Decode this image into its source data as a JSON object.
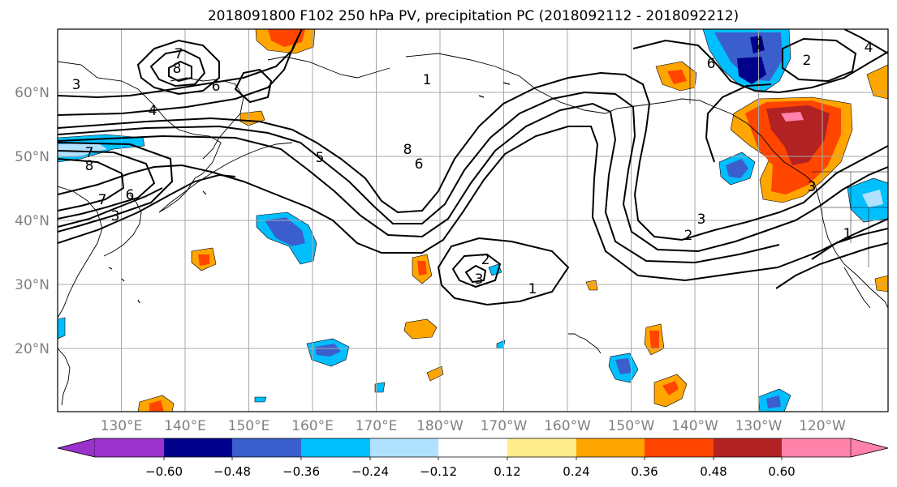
{
  "title": "2018091800 F102 250 hPa PV, precipitation PC (2018092112 - 2018092212)",
  "map": {
    "lon_labels": [
      "130°E",
      "140°E",
      "150°E",
      "160°E",
      "170°E",
      "180°W",
      "170°W",
      "160°W",
      "150°W",
      "140°W",
      "130°W",
      "120°W"
    ],
    "lat_labels": [
      "60°N",
      "50°N",
      "40°N",
      "30°N",
      "20°N"
    ],
    "label_color": "#808080",
    "grid_color": "#a8a8a8",
    "pv_contour_labels": [
      "7",
      "8",
      "6",
      "3",
      "4",
      "7",
      "8",
      "6",
      "5",
      "7",
      "8",
      "6",
      "3",
      "6",
      "4",
      "2",
      "3",
      "2",
      "3",
      "2",
      "1",
      "1",
      "2",
      "3",
      "1"
    ]
  },
  "colorbar": {
    "colors": [
      "#9a32cd",
      "#00008b",
      "#3a5fcd",
      "#00bfff",
      "#b0e2ff",
      "#ffffff",
      "#ffec8b",
      "#ffa500",
      "#ff4500",
      "#b22222",
      "#ff82ab"
    ],
    "tick_labels": [
      "−0.60",
      "−0.48",
      "−0.36",
      "−0.24",
      "−0.12",
      "0.12",
      "0.24",
      "0.36",
      "0.48",
      "0.60"
    ],
    "extend": "both"
  }
}
